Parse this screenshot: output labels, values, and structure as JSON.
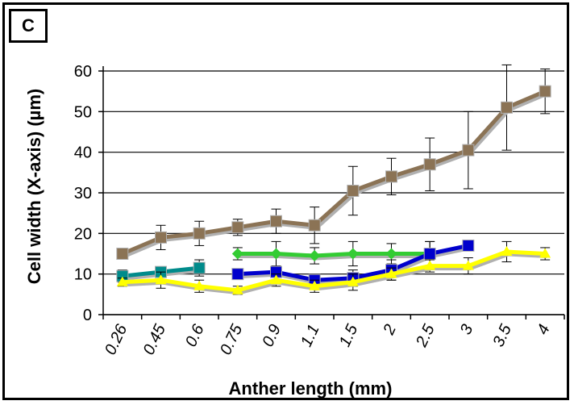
{
  "panel_label": "C",
  "chart_data": {
    "type": "line",
    "xlabel": "Anther length (mm)",
    "ylabel": "Cell width (X-axis) (µm)",
    "categories": [
      "0.26",
      "0.45",
      "0.6",
      "0.75",
      "0.9",
      "1.1",
      "1.5",
      "2",
      "2.5",
      "3",
      "3.5",
      "4"
    ],
    "ylim": [
      0,
      60
    ],
    "yticks": [
      0,
      10,
      20,
      30,
      40,
      50,
      60
    ],
    "grid": "horizontal",
    "series": [
      {
        "color": "#8B7355",
        "marker": "square",
        "values": [
          15,
          19,
          20,
          21.5,
          23,
          22,
          30.5,
          34,
          37,
          40.5,
          51,
          55
        ],
        "errors": [
          1,
          3,
          3,
          2,
          3,
          4.5,
          6,
          4.5,
          6.5,
          9.5,
          10.5,
          5.5
        ]
      },
      {
        "color": "#008B8B",
        "marker": "square",
        "values": [
          9.5,
          10.5,
          11.5,
          null,
          null,
          null,
          null,
          null,
          null,
          null,
          null,
          null
        ],
        "errors": [
          1.5,
          1,
          2,
          null,
          null,
          null,
          null,
          null,
          null,
          null,
          null,
          null
        ]
      },
      {
        "color": "#33CC33",
        "marker": "diamond",
        "values": [
          null,
          null,
          null,
          15,
          15,
          14.5,
          15,
          15,
          15,
          null,
          null,
          null
        ],
        "errors": [
          null,
          null,
          null,
          1.5,
          3,
          2,
          3,
          2.5,
          3,
          null,
          null,
          null
        ]
      },
      {
        "color": "#0000CC",
        "marker": "square",
        "values": [
          null,
          null,
          null,
          10,
          10.5,
          8.5,
          9,
          11,
          15,
          17,
          null,
          null
        ],
        "errors": [
          null,
          null,
          null,
          1,
          1,
          1,
          2,
          2.5,
          3,
          null,
          null,
          null
        ]
      },
      {
        "color": "#FFFF00",
        "marker": "triangle",
        "values": [
          8,
          8.5,
          7,
          6,
          8.5,
          7,
          8,
          10,
          12,
          12,
          15.5,
          15
        ],
        "errors": [
          1,
          2,
          1.5,
          1,
          1.5,
          1.5,
          2,
          1.5,
          1.5,
          2,
          2.5,
          1.5
        ]
      }
    ]
  }
}
